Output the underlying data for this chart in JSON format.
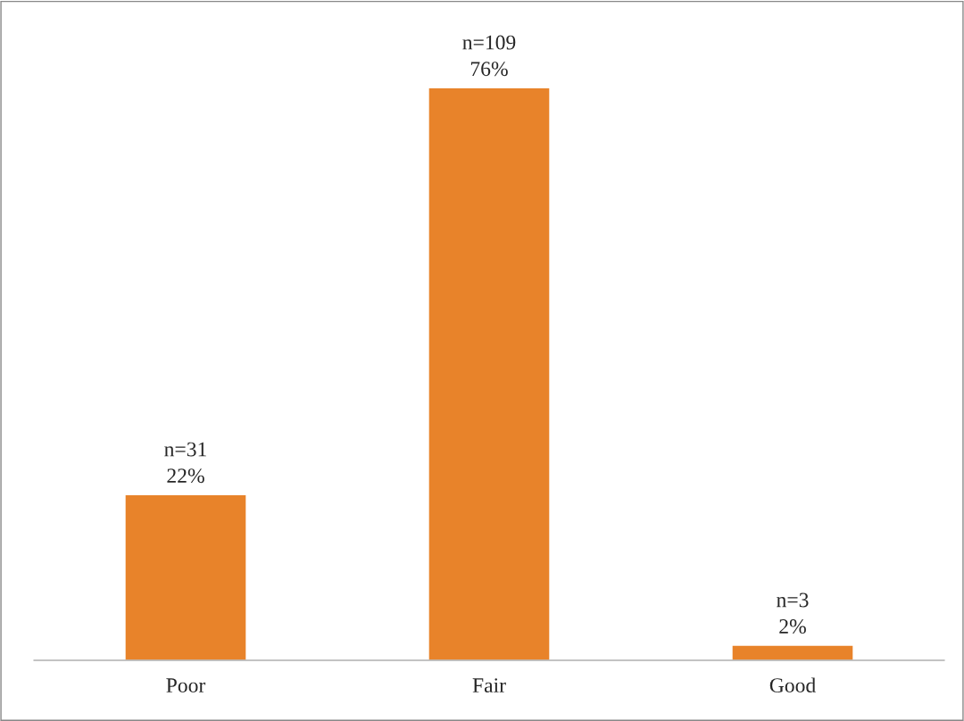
{
  "chart_data": {
    "type": "bar",
    "categories": [
      "Poor",
      "Fair",
      "Good"
    ],
    "values": [
      22,
      76,
      2
    ],
    "value_labels": [
      "n=31\n22%",
      "n=109\n76%",
      "n=3\n2%"
    ],
    "color": "#e8832a",
    "grid": false,
    "legend": false,
    "tick_labels": "x"
  }
}
